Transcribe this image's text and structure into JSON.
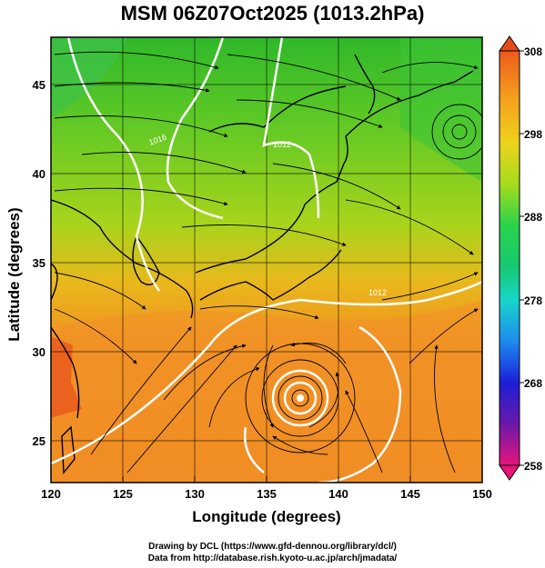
{
  "title": "MSM 06Z07Oct2025 (1013.2hPa)",
  "map": {
    "lon_range": [
      120,
      150
    ],
    "lat_range": [
      23,
      48
    ],
    "x_ticks": [
      "120",
      "125",
      "130",
      "135",
      "140",
      "145",
      "150"
    ],
    "y_ticks": [
      "25",
      "30",
      "35",
      "40",
      "45"
    ],
    "xlabel": "Longitude (degrees)",
    "ylabel": "Latitude (degrees)",
    "contour_labels": [
      "1016",
      "1012",
      "1012"
    ],
    "typhoon_center": {
      "lon": 137.8,
      "lat": 27.8
    },
    "cyclone_center": {
      "lon": 148.3,
      "lat": 43.3
    }
  },
  "colorbar": {
    "ticks": [
      "308",
      "298",
      "288",
      "278",
      "268",
      "258"
    ],
    "min": 258,
    "max": 308,
    "colors": [
      "#e8147a",
      "#6a18a8",
      "#1b1fd6",
      "#1d8cf0",
      "#17d6c8",
      "#2ad34a",
      "#46c92c",
      "#a8dc1a",
      "#eed21c",
      "#f5a31e",
      "#ee5a1a"
    ]
  },
  "credits": {
    "line1": "Drawing by DCL (https://www.gfd-dennou.org/library/dcl/)",
    "line2": "Data from http://database.rish.kyoto-u.ac.jp/arch/jmadata/"
  }
}
